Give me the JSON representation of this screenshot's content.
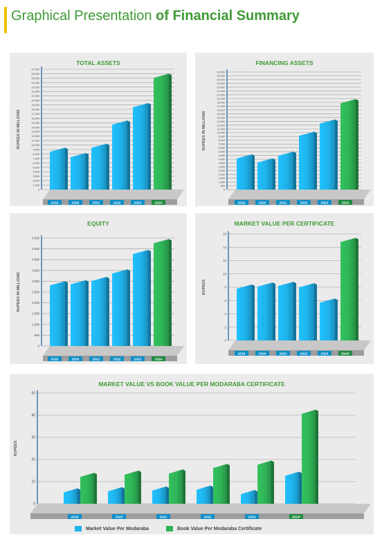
{
  "header": {
    "title_light": "Graphical Presentation",
    "title_bold": "of Financial Summary"
  },
  "colors": {
    "blue": "#1fb3ec",
    "blue_dark": "#0d8fc8",
    "green": "#2fb457",
    "green_dark": "#1d8c3e",
    "title": "#3f9a34",
    "axis": "#1b5aa0"
  },
  "legend": {
    "market": "Market Value Per Modaraba",
    "book": "Book Value Per Modaraba Certificate"
  },
  "chart_data": [
    {
      "id": "total-assets",
      "type": "bar",
      "title": "TOTAL ASSETS",
      "ylabel": "RUPEES IN MILLIONS",
      "categories": [
        "2019",
        "2020",
        "2021",
        "2022",
        "2023",
        "2024"
      ],
      "values": [
        9400,
        8200,
        10300,
        15500,
        19400,
        26000
      ],
      "highlight": [
        false,
        false,
        false,
        false,
        false,
        true
      ],
      "ylim": [
        0,
        27000
      ],
      "yticks": [
        "0",
        "1,000",
        "2,000",
        "3,000",
        "4,000",
        "5,000",
        "6,000",
        "7,000",
        "8,000",
        "9,000",
        "10,000",
        "11,000",
        "12,000",
        "13,000",
        "14,000",
        "15,000",
        "16,000",
        "17,000",
        "18,000",
        "19,000",
        "20,000",
        "21,000",
        "22,000",
        "23,000",
        "24,000",
        "25,000",
        "26,000",
        "27,000"
      ]
    },
    {
      "id": "financing-assets",
      "type": "bar",
      "title": "FINANCING ASSETS",
      "ylabel": "RUPEES IN MILLIONS",
      "categories": [
        "2019",
        "2020",
        "2021",
        "2022",
        "2023",
        "2024"
      ],
      "values": [
        7800,
        6900,
        8400,
        12800,
        15500,
        20000
      ],
      "highlight": [
        false,
        false,
        false,
        false,
        false,
        true
      ],
      "ylim": [
        0,
        26000
      ],
      "yticks": [
        "0",
        "500",
        "1,000",
        "1,500",
        "2,000",
        "2,500",
        "3,000",
        "3,500",
        "4,000",
        "4,500",
        "5,000",
        "6,000",
        "7,000",
        "8,000",
        "9,000",
        "10,000",
        "11,000",
        "12,000",
        "13,000",
        "14,000",
        "15,000",
        "16,000",
        "17,000",
        "18,000",
        "19,000",
        "20,000",
        "21,000",
        "22,000",
        "23,000",
        "24,000",
        "25,000",
        "26,000"
      ]
    },
    {
      "id": "equity",
      "type": "bar",
      "title": "EQUITY",
      "ylabel": "RUPEES IN MILLIONS",
      "categories": [
        "2019",
        "2020",
        "2021",
        "2022",
        "2023",
        "2024"
      ],
      "values": [
        3000,
        3050,
        3200,
        3550,
        4450,
        4950
      ],
      "highlight": [
        false,
        false,
        false,
        false,
        false,
        true
      ],
      "ylim": [
        0,
        5000
      ],
      "yticks": [
        "0",
        "500",
        "1,000",
        "1,500",
        "2,000",
        "2,500",
        "3,000",
        "3,500",
        "4,000",
        "4,500",
        "5,000"
      ]
    },
    {
      "id": "market-value",
      "type": "bar",
      "title": "MARKET VALUE PER CERTIFICATE",
      "ylabel": "RUPEES",
      "categories": [
        "2019",
        "2020",
        "2021",
        "2022",
        "2023",
        "2024*"
      ],
      "values": [
        8.4,
        8.7,
        8.8,
        8.6,
        6.3,
        15.4
      ],
      "highlight": [
        false,
        false,
        false,
        false,
        false,
        true
      ],
      "ylim": [
        0,
        16
      ],
      "yticks": [
        "0",
        "2",
        "4",
        "6",
        "8",
        "10",
        "12",
        "14",
        "16"
      ]
    },
    {
      "id": "market-vs-book",
      "type": "bar",
      "title": "MARKET VALUE VS BOOK VALUE PER MODARABA CERTIFICATE",
      "ylabel": "RUPEES",
      "categories": [
        "2019",
        "2020",
        "2021",
        "2022",
        "2023",
        "2024*"
      ],
      "series": [
        {
          "name": "Market Value Per Modaraba",
          "values": [
            7.0,
            7.5,
            7.8,
            8.2,
            6.2,
            14.5
          ]
        },
        {
          "name": "Book Value Per Modaraba Certificate",
          "values": [
            14.0,
            15.0,
            15.5,
            18.0,
            19.5,
            42.5
          ]
        }
      ],
      "ylim": [
        0,
        50
      ],
      "yticks": [
        "0",
        "10",
        "20",
        "30",
        "40",
        "50"
      ]
    }
  ]
}
